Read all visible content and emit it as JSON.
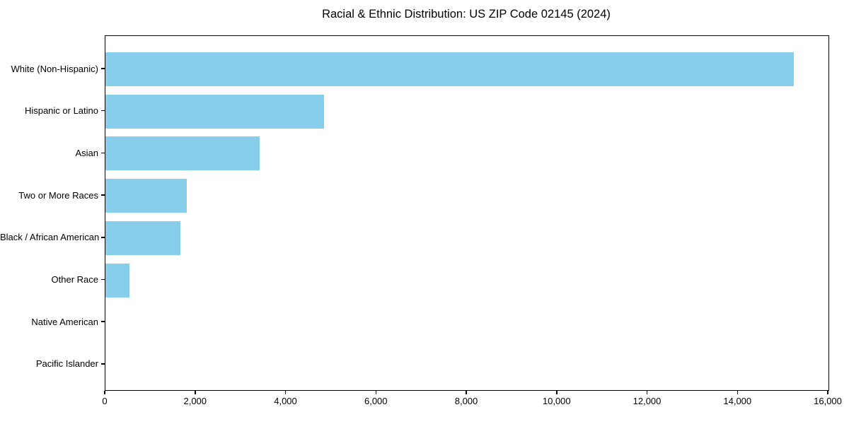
{
  "chart_data": {
    "type": "bar",
    "orientation": "horizontal",
    "title": "Racial & Ethnic Distribution: US ZIP Code 02145 (2024)",
    "categories": [
      "White (Non-Hispanic)",
      "Hispanic or Latino",
      "Asian",
      "Two or More Races",
      "Black / African American",
      "Other Race",
      "Native American",
      "Pacific Islander"
    ],
    "values": [
      15230,
      4830,
      3420,
      1800,
      1660,
      530,
      0,
      0
    ],
    "xlabel": "",
    "ylabel": "",
    "xlim": [
      0,
      16000
    ],
    "xticks": [
      0,
      2000,
      4000,
      6000,
      8000,
      10000,
      12000,
      14000,
      16000
    ],
    "xtick_labels": [
      "0",
      "2,000",
      "4,000",
      "6,000",
      "8,000",
      "10,000",
      "12,000",
      "14,000",
      "16,000"
    ],
    "grid": false,
    "legend": false,
    "bar_color": "#87CEEB",
    "axis_color": "#000000",
    "background_color": "#ffffff"
  }
}
